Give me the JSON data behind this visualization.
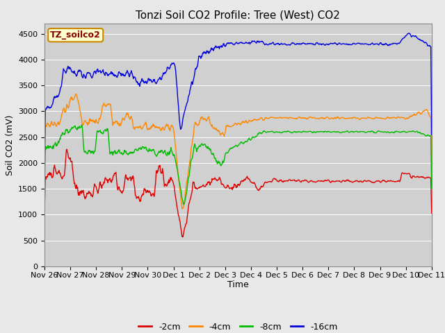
{
  "title": "Tonzi Soil CO2 Profile: Tree (West) CO2",
  "xlabel": "Time",
  "ylabel": "Soil CO2 (mV)",
  "ylim": [
    0,
    4700
  ],
  "yticks": [
    0,
    500,
    1000,
    1500,
    2000,
    2500,
    3000,
    3500,
    4000,
    4500
  ],
  "fig_bg_color": "#e8e8e8",
  "plot_bg_color": "#d0d0d0",
  "line_colors": {
    "-2cm": "#dd0000",
    "-4cm": "#ff8800",
    "-8cm": "#00bb00",
    "-16cm": "#0000dd"
  },
  "x_tick_labels": [
    "Nov 26",
    "Nov 27",
    "Nov 28",
    "Nov 29",
    "Nov 30",
    "Dec 1",
    "Dec 2",
    "Dec 3",
    "Dec 4",
    "Dec 5",
    "Dec 6",
    "Dec 7",
    "Dec 8",
    "Dec 9",
    "Dec 10",
    "Dec 11"
  ],
  "legend_box_label": "TZ_soilco2",
  "legend_box_fc": "#ffffcc",
  "legend_box_ec": "#cc8800",
  "legend_label_color": "#880000",
  "title_fontsize": 11,
  "axis_label_fontsize": 9,
  "tick_fontsize": 8,
  "legend_fontsize": 9
}
